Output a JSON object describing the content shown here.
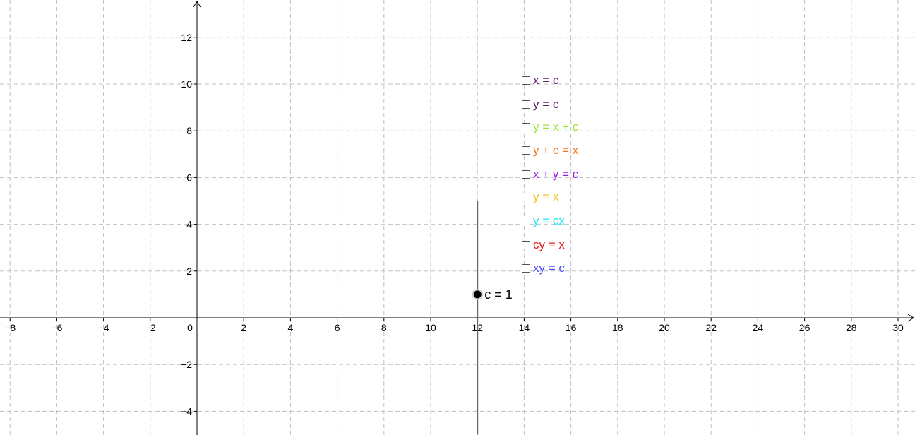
{
  "chart_data": {
    "type": "graph",
    "x_ticks": [
      -8,
      -6,
      -4,
      -2,
      0,
      2,
      4,
      6,
      8,
      10,
      12,
      14,
      16,
      18,
      20,
      22,
      24,
      26,
      28,
      30
    ],
    "y_ticks": [
      -4,
      -2,
      2,
      4,
      6,
      8,
      10,
      12
    ],
    "xlim": [
      -8.4,
      31
    ],
    "ylim": [
      -5,
      13.6
    ],
    "grid": true,
    "slider": {
      "x": 12,
      "y_range": [
        -5,
        5
      ],
      "point": [
        12,
        1
      ],
      "label": "c = 1"
    }
  },
  "checkboxes": [
    {
      "label": "x = c",
      "color": "#5c1a6e",
      "checked": false
    },
    {
      "label": "y = c",
      "color": "#5c1a6e",
      "checked": false
    },
    {
      "label": "y = x + c",
      "color": "#99e633",
      "checked": false
    },
    {
      "label": "y + c = x",
      "color": "#f2731a",
      "checked": false
    },
    {
      "label": "x + y = c",
      "color": "#9a1ee6",
      "checked": false
    },
    {
      "label": "y = x",
      "color": "#f2c21e",
      "checked": false
    },
    {
      "label": "y = cx",
      "color": "#22e6f2",
      "checked": false
    },
    {
      "label": "cy = x",
      "color": "#e61a1a",
      "checked": false
    },
    {
      "label": "xy = c",
      "color": "#4c4cff",
      "checked": false
    }
  ],
  "colors": {
    "grid": "#c0c0c0",
    "axis": "#000000",
    "slider_line": "#666666",
    "slider_point": "#000000"
  }
}
